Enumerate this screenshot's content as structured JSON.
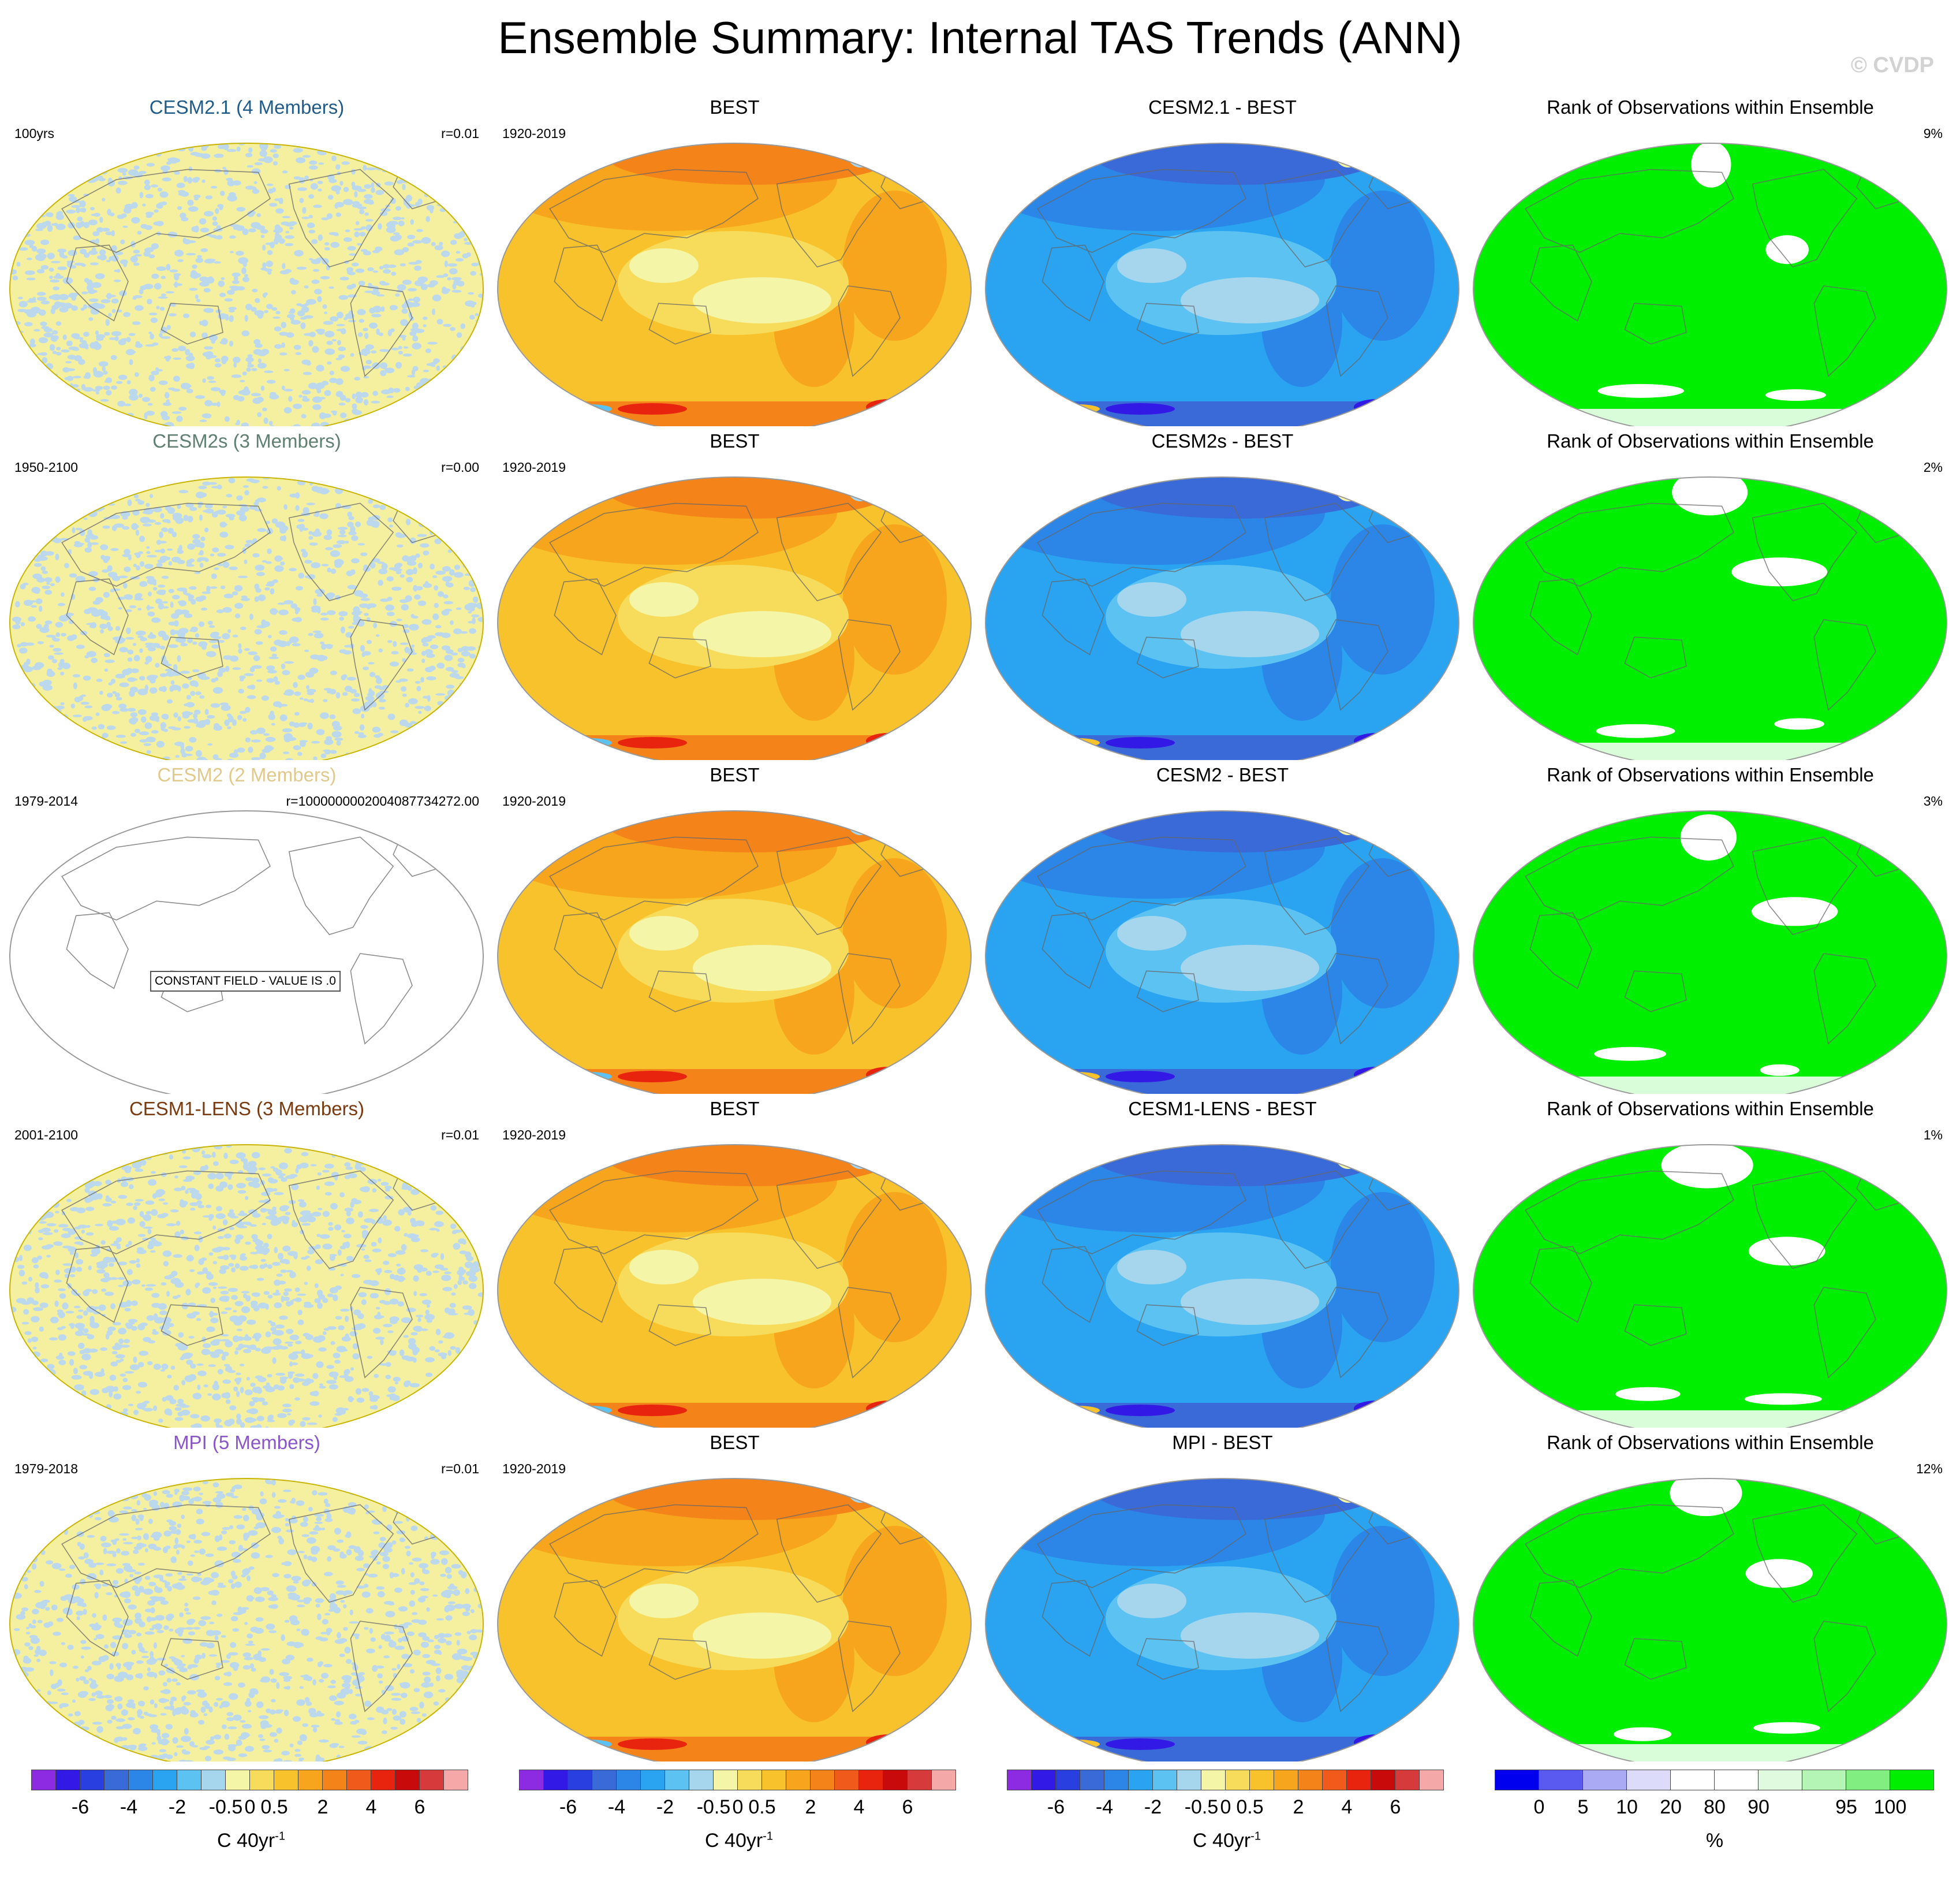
{
  "page": {
    "title": "Ensemble Summary: Internal TAS Trends (ANN)",
    "watermark": "© CVDP"
  },
  "rows": [
    {
      "ensemble": {
        "title": "CESM2.1 (4 Members)",
        "color": "#1f5c8a",
        "left": "100yrs",
        "right": "r=0.01",
        "field": "noise"
      },
      "obs": {
        "title": "BEST",
        "left": "1920-2019",
        "field": "warm"
      },
      "diff": {
        "title": "CESM2.1 - BEST",
        "field": "cool"
      },
      "rank": {
        "title": "Rank of Observations within Ensemble",
        "right": "9%",
        "field": "rank"
      }
    },
    {
      "ensemble": {
        "title": "CESM2s (3 Members)",
        "color": "#5f7f72",
        "left": "1950-2100",
        "right": "r=0.00",
        "field": "noise"
      },
      "obs": {
        "title": "BEST",
        "left": "1920-2019",
        "field": "warm"
      },
      "diff": {
        "title": "CESM2s - BEST",
        "field": "cool"
      },
      "rank": {
        "title": "Rank of Observations within Ensemble",
        "right": "2%",
        "field": "rank"
      }
    },
    {
      "ensemble": {
        "title": "CESM2 (2 Members)",
        "color": "#e0c98a",
        "left": "1979-2014",
        "right": "r=1000000002004087734272.00",
        "field": "blank",
        "constant_label": "CONSTANT FIELD - VALUE IS .0"
      },
      "obs": {
        "title": "BEST",
        "left": "1920-2019",
        "field": "warm"
      },
      "diff": {
        "title": "CESM2 - BEST",
        "field": "cool"
      },
      "rank": {
        "title": "Rank of Observations within Ensemble",
        "right": "3%",
        "field": "rank"
      }
    },
    {
      "ensemble": {
        "title": "CESM1-LENS (3 Members)",
        "color": "#7a3a10",
        "left": "2001-2100",
        "right": "r=0.01",
        "field": "noise"
      },
      "obs": {
        "title": "BEST",
        "left": "1920-2019",
        "field": "warm"
      },
      "diff": {
        "title": "CESM1-LENS - BEST",
        "field": "cool"
      },
      "rank": {
        "title": "Rank of Observations within Ensemble",
        "right": "1%",
        "field": "rank"
      }
    },
    {
      "ensemble": {
        "title": "MPI (5 Members)",
        "color": "#8a55c8",
        "left": "1979-2018",
        "right": "r=0.01",
        "field": "noise"
      },
      "obs": {
        "title": "BEST",
        "left": "1920-2019",
        "field": "warm"
      },
      "diff": {
        "title": "MPI - BEST",
        "field": "cool"
      },
      "rank": {
        "title": "Rank of Observations within Ensemble",
        "right": "12%",
        "field": "rank"
      }
    }
  ],
  "colorbars": [
    {
      "colors": [
        "#8c2be2",
        "#3319e6",
        "#2a3fe0",
        "#3a6ad8",
        "#2b86e8",
        "#2aa3f0",
        "#5cc2f2",
        "#a6d6ee",
        "#f5f5a8",
        "#f7dc5c",
        "#f7c22c",
        "#f7a51c",
        "#f4841a",
        "#f05a1a",
        "#e8240e",
        "#c80a0a",
        "#d63a3a",
        "#f4a8a8"
      ],
      "labels": [
        "-6",
        "-4",
        "-2",
        "-0.5",
        "0",
        "0.5",
        "2",
        "4",
        "6"
      ],
      "unit": "C 40yr",
      "unit_sup": "-1"
    },
    {
      "colors": [
        "#8c2be2",
        "#3319e6",
        "#2a3fe0",
        "#3a6ad8",
        "#2b86e8",
        "#2aa3f0",
        "#5cc2f2",
        "#a6d6ee",
        "#f5f5a8",
        "#f7dc5c",
        "#f7c22c",
        "#f7a51c",
        "#f4841a",
        "#f05a1a",
        "#e8240e",
        "#c80a0a",
        "#d63a3a",
        "#f4a8a8"
      ],
      "labels": [
        "-6",
        "-4",
        "-2",
        "-0.5",
        "0",
        "0.5",
        "2",
        "4",
        "6"
      ],
      "unit": "C 40yr",
      "unit_sup": "-1"
    },
    {
      "colors": [
        "#8c2be2",
        "#3319e6",
        "#2a3fe0",
        "#3a6ad8",
        "#2b86e8",
        "#2aa3f0",
        "#5cc2f2",
        "#a6d6ee",
        "#f5f5a8",
        "#f7dc5c",
        "#f7c22c",
        "#f7a51c",
        "#f4841a",
        "#f05a1a",
        "#e8240e",
        "#c80a0a",
        "#d63a3a",
        "#f4a8a8"
      ],
      "labels": [
        "-6",
        "-4",
        "-2",
        "-0.5",
        "0",
        "0.5",
        "2",
        "4",
        "6"
      ],
      "unit": "C 40yr",
      "unit_sup": "-1"
    },
    {
      "colors": [
        "#0000ee",
        "#5a5af0",
        "#aaaaf4",
        "#dcdcfa",
        "#ffffff",
        "#ffffff",
        "#e0fae0",
        "#b4f4b4",
        "#80ee80",
        "#00ee00"
      ],
      "labels": [
        "0",
        "5",
        "10",
        "20",
        "80",
        "90",
        "95",
        "100"
      ],
      "unit": "%",
      "unit_sup": ""
    }
  ],
  "legend_colors": {
    "warm_base": "#f7c22c",
    "cool_base": "#2aa3f0",
    "rank_base": "#00ee00",
    "noise_a": "#f5f0a0",
    "noise_b": "#bcd8ec"
  }
}
